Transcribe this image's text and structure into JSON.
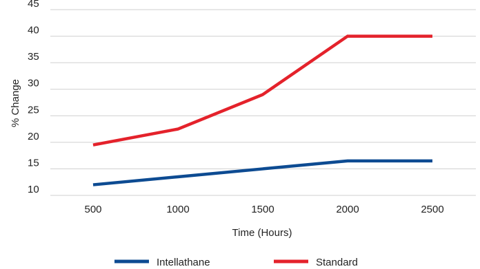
{
  "chart_data": {
    "type": "line",
    "x": [
      500,
      1000,
      1500,
      2000,
      2500
    ],
    "categories": [
      "500",
      "1000",
      "1500",
      "2000",
      "2500"
    ],
    "series": [
      {
        "name": "Intellathane",
        "values": [
          12,
          13.5,
          15,
          16.5,
          16.5
        ],
        "color": "#0d4b92"
      },
      {
        "name": "Standard",
        "values": [
          19.5,
          22.5,
          29,
          40,
          40
        ],
        "color": "#e4222b"
      }
    ],
    "xlabel": "Time (Hours)",
    "ylabel": "% Change",
    "yticks": [
      "10",
      "15",
      "20",
      "25",
      "30",
      "35",
      "40",
      "45"
    ],
    "ylim": [
      10,
      45
    ],
    "grid": "horizontal",
    "legend": "bottom-center"
  }
}
